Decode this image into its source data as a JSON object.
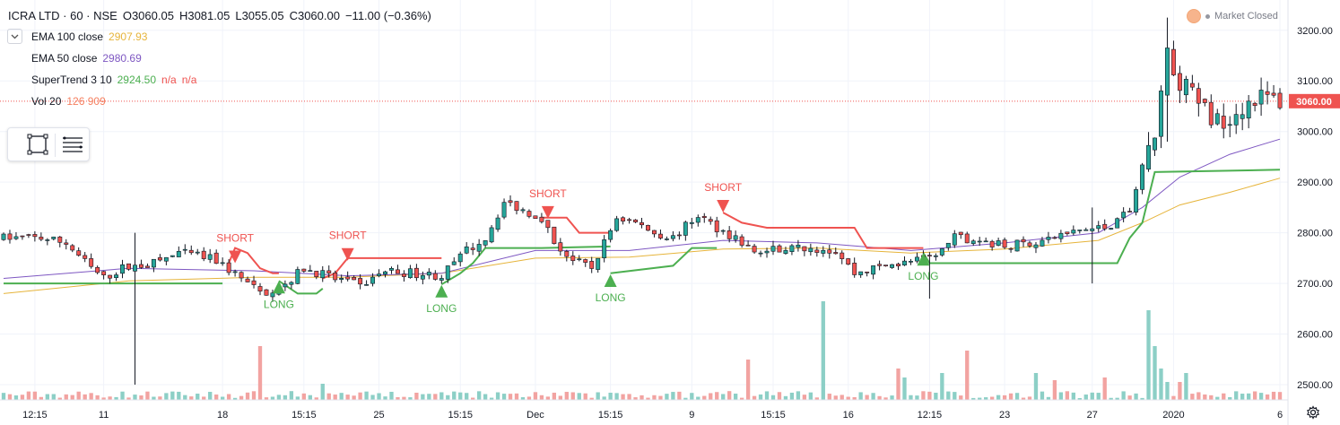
{
  "header": {
    "symbol": "ICRA LTD · 60 · NSE",
    "open": "O3060.05",
    "high": "H3081.05",
    "low": "L3055.05",
    "close": "C3060.00",
    "change": "−11.00 (−0.36%)"
  },
  "indicators": {
    "ema100": {
      "label": "EMA 100 close",
      "value": "2907.93",
      "color": "#e6b43a"
    },
    "ema50": {
      "label": "EMA 50 close",
      "value": "2980.69",
      "color": "#7e57c2"
    },
    "supertrend": {
      "label": "SuperTrend 3 10",
      "value": "2924.50",
      "na1": "n/a",
      "na2": "n/a",
      "value_color": "#4caf50",
      "na_color": "#ef5350"
    },
    "vol": {
      "label": "Vol 20",
      "value": "126 909",
      "color": "#f57f5f"
    }
  },
  "market_status": "Market Closed",
  "colors": {
    "up": "#26a69a",
    "down": "#ef5350",
    "up_vol": "#8ccfc6",
    "down_vol": "#f2a3a1",
    "st_up": "#4caf50",
    "st_down": "#ef5350"
  },
  "icons": {
    "toggle": "chevron-down-icon",
    "rect_tool": "rectangle-tool-icon",
    "menu_tool": "list-menu-icon",
    "settings": "gear-icon"
  },
  "chart_data": {
    "type": "candlestick",
    "ylim": [
      2470,
      3235
    ],
    "ytick_values": [
      2500,
      2600,
      2700,
      2800,
      2900,
      3000,
      3100,
      3200
    ],
    "ytick_labels": [
      "2500.00",
      "2600.00",
      "2700.00",
      "2800.00",
      "2900.00",
      "3000.00",
      "3100.00",
      "3200.00"
    ],
    "price_label": "3060.00",
    "last_price": 3060,
    "xtick_labels": [
      "12:15",
      "11",
      "18",
      "15:15",
      "25",
      "15:15",
      "Dec",
      "15:15",
      "9",
      "15:15",
      "16",
      "12:15",
      "23",
      "27",
      "2020",
      "6"
    ],
    "xtick_index": [
      5,
      16,
      35,
      48,
      60,
      73,
      85,
      97,
      110,
      123,
      135,
      148,
      160,
      174,
      187,
      204
    ],
    "total_bars": 205,
    "price_path": [
      [
        0,
        2790
      ],
      [
        6,
        2790
      ],
      [
        10,
        2780
      ],
      [
        14,
        2730
      ],
      [
        16,
        2710
      ],
      [
        19,
        2730
      ],
      [
        24,
        2740
      ],
      [
        28,
        2760
      ],
      [
        31,
        2755
      ],
      [
        34,
        2745
      ],
      [
        38,
        2710
      ],
      [
        41,
        2680
      ],
      [
        45,
        2700
      ],
      [
        48,
        2730
      ],
      [
        53,
        2710
      ],
      [
        57,
        2695
      ],
      [
        61,
        2725
      ],
      [
        66,
        2720
      ],
      [
        70,
        2715
      ],
      [
        74,
        2765
      ],
      [
        77,
        2790
      ],
      [
        80,
        2860
      ],
      [
        83,
        2845
      ],
      [
        86,
        2830
      ],
      [
        88,
        2780
      ],
      [
        91,
        2745
      ],
      [
        94,
        2730
      ],
      [
        98,
        2830
      ],
      [
        101,
        2820
      ],
      [
        104,
        2800
      ],
      [
        107,
        2790
      ],
      [
        111,
        2835
      ],
      [
        114,
        2810
      ],
      [
        117,
        2790
      ],
      [
        120,
        2760
      ],
      [
        124,
        2770
      ],
      [
        128,
        2770
      ],
      [
        133,
        2765
      ],
      [
        136,
        2720
      ],
      [
        141,
        2735
      ],
      [
        146,
        2745
      ],
      [
        149,
        2755
      ],
      [
        152,
        2790
      ],
      [
        156,
        2785
      ],
      [
        160,
        2775
      ],
      [
        164,
        2780
      ],
      [
        168,
        2790
      ],
      [
        172,
        2805
      ],
      [
        176,
        2810
      ],
      [
        180,
        2840
      ],
      [
        182,
        2930
      ],
      [
        184,
        3000
      ],
      [
        186,
        3150
      ],
      [
        188,
        3100
      ],
      [
        190,
        3070
      ],
      [
        192,
        3040
      ],
      [
        194,
        3020
      ],
      [
        197,
        3040
      ],
      [
        200,
        3070
      ],
      [
        204,
        3060
      ]
    ],
    "spikes": [
      {
        "i": 21,
        "high": 2800,
        "low": 2500
      },
      {
        "i": 186,
        "high": 3225,
        "low": 2980
      },
      {
        "i": 174,
        "high": 2850,
        "low": 2700
      },
      {
        "i": 148,
        "low": 2670
      }
    ],
    "ema50": [
      [
        0,
        2710
      ],
      [
        20,
        2730
      ],
      [
        40,
        2725
      ],
      [
        55,
        2715
      ],
      [
        70,
        2720
      ],
      [
        85,
        2765
      ],
      [
        100,
        2765
      ],
      [
        115,
        2785
      ],
      [
        130,
        2780
      ],
      [
        145,
        2765
      ],
      [
        160,
        2780
      ],
      [
        175,
        2800
      ],
      [
        182,
        2850
      ],
      [
        188,
        2910
      ],
      [
        196,
        2955
      ],
      [
        204,
        2985
      ]
    ],
    "ema100": [
      [
        0,
        2680
      ],
      [
        20,
        2705
      ],
      [
        40,
        2712
      ],
      [
        55,
        2712
      ],
      [
        70,
        2720
      ],
      [
        85,
        2750
      ],
      [
        100,
        2752
      ],
      [
        115,
        2768
      ],
      [
        130,
        2770
      ],
      [
        145,
        2760
      ],
      [
        160,
        2768
      ],
      [
        175,
        2785
      ],
      [
        182,
        2820
      ],
      [
        188,
        2855
      ],
      [
        196,
        2880
      ],
      [
        204,
        2908
      ]
    ],
    "supertrend": [
      {
        "trend": "up",
        "points": [
          [
            0,
            2700
          ],
          [
            35,
            2700
          ]
        ]
      },
      {
        "trend": "down",
        "points": [
          [
            36,
            2740
          ],
          [
            37,
            2770
          ],
          [
            39,
            2760
          ],
          [
            41,
            2730
          ],
          [
            43,
            2720
          ],
          [
            44,
            2720
          ]
        ]
      },
      {
        "trend": "up",
        "points": [
          [
            44,
            2705
          ],
          [
            47,
            2680
          ],
          [
            50,
            2680
          ],
          [
            51,
            2690
          ]
        ]
      },
      {
        "trend": "down",
        "points": [
          [
            51,
            2710
          ],
          [
            53,
            2720
          ],
          [
            55,
            2750
          ],
          [
            70,
            2750
          ]
        ]
      },
      {
        "trend": "up",
        "points": [
          [
            70,
            2698
          ],
          [
            73,
            2720
          ],
          [
            75,
            2740
          ],
          [
            77,
            2770
          ],
          [
            86,
            2770
          ],
          [
            97,
            2773
          ]
        ]
      },
      {
        "trend": "up",
        "points": [
          [
            97,
            2720
          ],
          [
            107,
            2735
          ],
          [
            110,
            2770
          ],
          [
            114,
            2770
          ]
        ]
      },
      {
        "trend": "down",
        "points": [
          [
            86,
            2830
          ],
          [
            90,
            2830
          ],
          [
            92,
            2800
          ],
          [
            97,
            2800
          ]
        ]
      },
      {
        "trend": "down",
        "points": [
          [
            115,
            2840
          ],
          [
            118,
            2820
          ],
          [
            122,
            2810
          ],
          [
            136,
            2810
          ],
          [
            138,
            2770
          ],
          [
            147,
            2770
          ]
        ]
      },
      {
        "trend": "up",
        "points": [
          [
            147,
            2760
          ],
          [
            148,
            2740
          ],
          [
            163,
            2740
          ],
          [
            178,
            2740
          ],
          [
            180,
            2790
          ],
          [
            182,
            2820
          ],
          [
            184,
            2920
          ],
          [
            204,
            2924.5
          ]
        ]
      }
    ],
    "signals": [
      {
        "type": "short",
        "label": "SHORT",
        "i": 37,
        "price": 2740
      },
      {
        "type": "long",
        "label": "LONG",
        "i": 44,
        "price": 2705
      },
      {
        "type": "short",
        "label": "SHORT",
        "i": 55,
        "price": 2745
      },
      {
        "type": "long",
        "label": "LONG",
        "i": 70,
        "price": 2697
      },
      {
        "type": "short",
        "label": "SHORT",
        "i": 87,
        "price": 2828
      },
      {
        "type": "long",
        "label": "LONG",
        "i": 97,
        "price": 2718
      },
      {
        "type": "short",
        "label": "SHORT",
        "i": 115,
        "price": 2840
      },
      {
        "type": "long",
        "label": "LONG",
        "i": 147,
        "price": 2760
      }
    ],
    "volume_spikes": [
      {
        "i": 41,
        "v": 60
      },
      {
        "i": 51,
        "v": 18
      },
      {
        "i": 131,
        "v": 110
      },
      {
        "i": 119,
        "v": 45
      },
      {
        "i": 143,
        "v": 35
      },
      {
        "i": 144,
        "v": 25
      },
      {
        "i": 150,
        "v": 30
      },
      {
        "i": 154,
        "v": 55
      },
      {
        "i": 165,
        "v": 30
      },
      {
        "i": 168,
        "v": 22
      },
      {
        "i": 176,
        "v": 25
      },
      {
        "i": 183,
        "v": 100
      },
      {
        "i": 184,
        "v": 60
      },
      {
        "i": 185,
        "v": 35
      },
      {
        "i": 186,
        "v": 20
      },
      {
        "i": 188,
        "v": 20
      },
      {
        "i": 189,
        "v": 30
      }
    ]
  }
}
